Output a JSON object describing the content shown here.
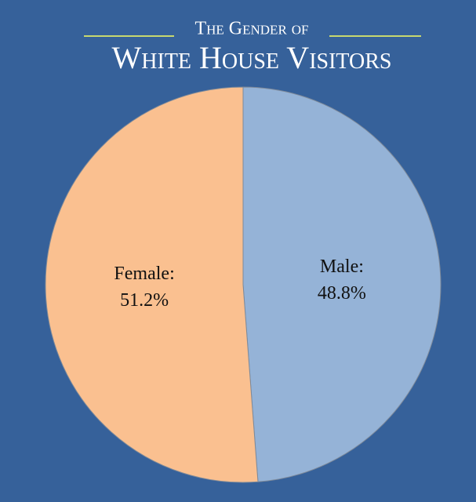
{
  "chart_data": {
    "type": "pie",
    "subtitle": "The Gender of",
    "title": "White House Visitors",
    "categories": [
      "Male:",
      "Female:"
    ],
    "values": [
      48.8,
      51.2
    ],
    "value_labels": [
      "48.8%",
      "51.2%"
    ],
    "colors": [
      "#95b3d7",
      "#fac090"
    ]
  }
}
